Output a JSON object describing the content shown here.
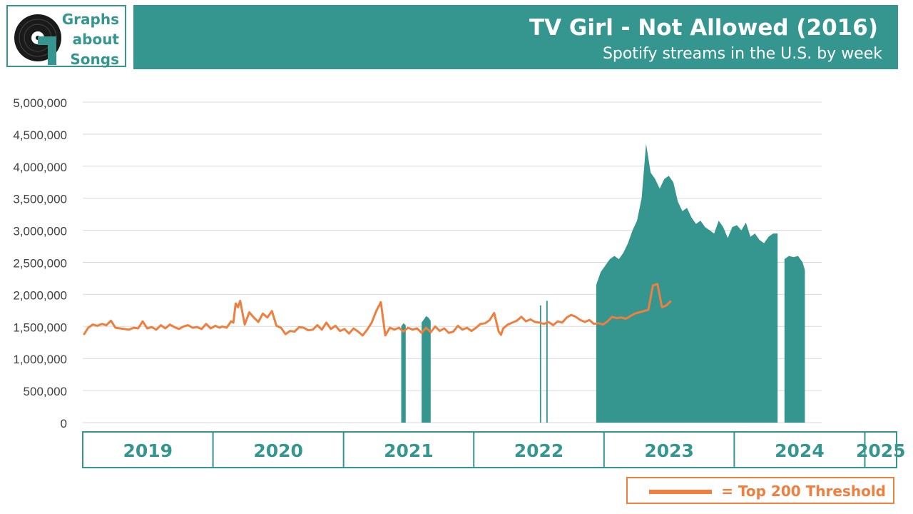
{
  "logo": {
    "lines": [
      "Graphs",
      "about",
      "Songs"
    ],
    "icon": "vinyl-record-icon"
  },
  "header": {
    "title": "TV Girl - Not Allowed (2016)",
    "subtitle": "Spotify streams in the U.S. by week"
  },
  "legend": {
    "label": "= Top 200 Threshold",
    "color": "#ee7f3e"
  },
  "colors": {
    "streams_fill": "#359690",
    "threshold_line": "#ee7f3e",
    "grid": "#d9d9d9",
    "axis_text": "#404040"
  },
  "chart_data": {
    "type": "area",
    "xlim": [
      "2019-01-01",
      "2025-03-31"
    ],
    "ylim": [
      0,
      5000000
    ],
    "grid": true,
    "legend_placement": "bottom-right",
    "y_ticks": [
      0,
      500000,
      1000000,
      1500000,
      2000000,
      2500000,
      3000000,
      3500000,
      4000000,
      4500000,
      5000000
    ],
    "y_tick_labels": [
      "0",
      "500,000",
      "1,000,000",
      "1,500,000",
      "2,000,000",
      "2,500,000",
      "3,000,000",
      "3,500,000",
      "4,000,000",
      "4,500,000",
      "5,000,000"
    ],
    "year_labels": [
      {
        "label": "2019",
        "start": "2019-01-01",
        "end": "2020-01-01"
      },
      {
        "label": "2020",
        "start": "2020-01-01",
        "end": "2021-01-01"
      },
      {
        "label": "2021",
        "start": "2021-01-01",
        "end": "2022-01-01"
      },
      {
        "label": "2022",
        "start": "2022-01-01",
        "end": "2023-01-01"
      },
      {
        "label": "2023",
        "start": "2023-01-01",
        "end": "2024-01-01"
      },
      {
        "label": "2024",
        "start": "2024-01-01",
        "end": "2025-01-01"
      },
      {
        "label": "2025",
        "start": "2025-01-01",
        "end": "2025-03-31"
      }
    ],
    "series": [
      {
        "role": "streams",
        "segments": [
          [
            [
              "2021-09-10",
              0
            ],
            [
              "2021-09-10",
              1500000
            ],
            [
              "2021-09-17",
              1550000
            ],
            [
              "2021-09-24",
              1520000
            ],
            [
              "2021-09-24",
              0
            ]
          ],
          [
            [
              "2021-11-12",
              0
            ],
            [
              "2021-11-12",
              1560000
            ],
            [
              "2021-11-19",
              1610000
            ],
            [
              "2021-11-26",
              1660000
            ],
            [
              "2021-12-03",
              1640000
            ],
            [
              "2021-12-10",
              1590000
            ],
            [
              "2021-12-10",
              0
            ]
          ],
          [
            [
              "2022-11-12",
              0
            ],
            [
              "2022-11-12",
              1830000
            ],
            [
              "2022-11-16",
              1830000
            ],
            [
              "2022-11-16",
              0
            ]
          ],
          [
            [
              "2022-12-02",
              0
            ],
            [
              "2022-12-02",
              1900000
            ],
            [
              "2022-12-06",
              1900000
            ],
            [
              "2022-12-06",
              0
            ]
          ],
          [
            [
              "2023-05-05",
              0
            ],
            [
              "2023-05-05",
              2150000
            ],
            [
              "2023-05-19",
              2350000
            ],
            [
              "2023-06-02",
              2450000
            ],
            [
              "2023-06-16",
              2550000
            ],
            [
              "2023-06-30",
              2600000
            ],
            [
              "2023-07-14",
              2550000
            ],
            [
              "2023-07-28",
              2650000
            ],
            [
              "2023-08-11",
              2800000
            ],
            [
              "2023-08-25",
              3000000
            ],
            [
              "2023-09-08",
              3150000
            ],
            [
              "2023-09-22",
              3500000
            ],
            [
              "2023-10-06",
              4350000
            ],
            [
              "2023-10-20",
              3900000
            ],
            [
              "2023-11-03",
              3800000
            ],
            [
              "2023-11-17",
              3650000
            ],
            [
              "2023-12-01",
              3800000
            ],
            [
              "2023-12-15",
              3850000
            ],
            [
              "2023-12-29",
              3750000
            ],
            [
              "2024-01-12",
              3450000
            ],
            [
              "2024-01-26",
              3300000
            ],
            [
              "2024-02-09",
              3350000
            ],
            [
              "2024-02-23",
              3200000
            ],
            [
              "2024-03-08",
              3100000
            ],
            [
              "2024-03-22",
              3150000
            ],
            [
              "2024-04-05",
              3050000
            ],
            [
              "2024-04-19",
              3000000
            ],
            [
              "2024-05-03",
              2950000
            ],
            [
              "2024-05-17",
              3150000
            ],
            [
              "2024-05-31",
              3050000
            ],
            [
              "2024-06-14",
              2880000
            ],
            [
              "2024-06-28",
              3050000
            ],
            [
              "2024-07-12",
              3080000
            ],
            [
              "2024-07-26",
              3000000
            ],
            [
              "2024-08-09",
              3120000
            ],
            [
              "2024-08-23",
              2900000
            ],
            [
              "2024-09-06",
              2950000
            ],
            [
              "2024-09-20",
              2850000
            ],
            [
              "2024-10-04",
              2800000
            ],
            [
              "2024-10-18",
              2900000
            ],
            [
              "2024-11-01",
              2950000
            ],
            [
              "2024-11-15",
              2950000
            ],
            [
              "2024-11-15",
              0
            ]
          ],
          [
            [
              "2024-12-06",
              0
            ],
            [
              "2024-12-06",
              2550000
            ],
            [
              "2024-12-20",
              2600000
            ],
            [
              "2025-01-03",
              2580000
            ],
            [
              "2025-01-17",
              2600000
            ],
            [
              "2025-01-31",
              2500000
            ],
            [
              "2025-02-07",
              2380000
            ],
            [
              "2025-02-07",
              0
            ]
          ]
        ]
      },
      {
        "role": "threshold",
        "points": [
          [
            "2019-01-04",
            1370000
          ],
          [
            "2019-01-18",
            1480000
          ],
          [
            "2019-02-01",
            1530000
          ],
          [
            "2019-02-15",
            1510000
          ],
          [
            "2019-03-01",
            1540000
          ],
          [
            "2019-03-15",
            1520000
          ],
          [
            "2019-03-29",
            1590000
          ],
          [
            "2019-04-12",
            1480000
          ],
          [
            "2019-04-26",
            1470000
          ],
          [
            "2019-05-10",
            1460000
          ],
          [
            "2019-05-24",
            1450000
          ],
          [
            "2019-06-07",
            1480000
          ],
          [
            "2019-06-21",
            1470000
          ],
          [
            "2019-07-05",
            1580000
          ],
          [
            "2019-07-19",
            1470000
          ],
          [
            "2019-08-02",
            1490000
          ],
          [
            "2019-08-16",
            1450000
          ],
          [
            "2019-08-30",
            1520000
          ],
          [
            "2019-09-13",
            1470000
          ],
          [
            "2019-09-27",
            1530000
          ],
          [
            "2019-10-11",
            1490000
          ],
          [
            "2019-10-25",
            1460000
          ],
          [
            "2019-11-08",
            1500000
          ],
          [
            "2019-11-22",
            1520000
          ],
          [
            "2019-12-06",
            1480000
          ],
          [
            "2019-12-20",
            1490000
          ],
          [
            "2020-01-03",
            1460000
          ],
          [
            "2020-01-17",
            1540000
          ],
          [
            "2020-01-31",
            1470000
          ],
          [
            "2020-02-14",
            1510000
          ],
          [
            "2020-02-28",
            1480000
          ],
          [
            "2020-03-06",
            1500000
          ],
          [
            "2020-03-20",
            1480000
          ],
          [
            "2020-04-03",
            1580000
          ],
          [
            "2020-04-10",
            1560000
          ],
          [
            "2020-04-17",
            1860000
          ],
          [
            "2020-04-24",
            1800000
          ],
          [
            "2020-05-01",
            1900000
          ],
          [
            "2020-05-15",
            1530000
          ],
          [
            "2020-05-29",
            1720000
          ],
          [
            "2020-06-12",
            1640000
          ],
          [
            "2020-06-26",
            1570000
          ],
          [
            "2020-07-10",
            1700000
          ],
          [
            "2020-07-24",
            1640000
          ],
          [
            "2020-08-07",
            1740000
          ],
          [
            "2020-08-21",
            1510000
          ],
          [
            "2020-09-04",
            1480000
          ],
          [
            "2020-09-18",
            1380000
          ],
          [
            "2020-10-02",
            1430000
          ],
          [
            "2020-10-16",
            1420000
          ],
          [
            "2020-10-30",
            1490000
          ],
          [
            "2020-11-13",
            1480000
          ],
          [
            "2020-11-27",
            1440000
          ],
          [
            "2020-12-11",
            1450000
          ],
          [
            "2020-12-25",
            1520000
          ],
          [
            "2021-01-08",
            1450000
          ],
          [
            "2021-01-22",
            1560000
          ],
          [
            "2021-02-05",
            1460000
          ],
          [
            "2021-02-19",
            1510000
          ],
          [
            "2021-03-05",
            1430000
          ],
          [
            "2021-03-19",
            1460000
          ],
          [
            "2021-04-02",
            1390000
          ],
          [
            "2021-04-16",
            1470000
          ],
          [
            "2021-04-30",
            1420000
          ],
          [
            "2021-05-14",
            1360000
          ],
          [
            "2021-05-28",
            1450000
          ],
          [
            "2021-06-11",
            1560000
          ],
          [
            "2021-06-25",
            1740000
          ],
          [
            "2021-07-09",
            1880000
          ],
          [
            "2021-07-23",
            1360000
          ],
          [
            "2021-08-06",
            1480000
          ],
          [
            "2021-08-20",
            1450000
          ],
          [
            "2021-09-03",
            1480000
          ],
          [
            "2021-09-17",
            1420000
          ],
          [
            "2021-10-01",
            1480000
          ],
          [
            "2021-10-15",
            1450000
          ],
          [
            "2021-10-29",
            1470000
          ],
          [
            "2021-11-12",
            1400000
          ],
          [
            "2021-11-26",
            1480000
          ],
          [
            "2021-12-10",
            1410000
          ],
          [
            "2021-12-24",
            1500000
          ],
          [
            "2022-01-07",
            1430000
          ],
          [
            "2022-01-21",
            1470000
          ],
          [
            "2022-02-04",
            1400000
          ],
          [
            "2022-02-18",
            1420000
          ],
          [
            "2022-03-04",
            1510000
          ],
          [
            "2022-03-18",
            1450000
          ],
          [
            "2022-04-01",
            1480000
          ],
          [
            "2022-04-15",
            1430000
          ],
          [
            "2022-04-29",
            1480000
          ],
          [
            "2022-05-13",
            1540000
          ],
          [
            "2022-05-27",
            1550000
          ],
          [
            "2022-06-10",
            1600000
          ],
          [
            "2022-06-24",
            1710000
          ],
          [
            "2022-07-08",
            1420000
          ],
          [
            "2022-07-15",
            1370000
          ],
          [
            "2022-07-22",
            1470000
          ],
          [
            "2022-08-05",
            1530000
          ],
          [
            "2022-08-19",
            1560000
          ],
          [
            "2022-09-02",
            1590000
          ],
          [
            "2022-09-16",
            1650000
          ],
          [
            "2022-09-30",
            1580000
          ],
          [
            "2022-10-14",
            1610000
          ],
          [
            "2022-10-28",
            1570000
          ],
          [
            "2022-11-11",
            1560000
          ],
          [
            "2022-11-25",
            1540000
          ],
          [
            "2022-12-09",
            1570000
          ],
          [
            "2022-12-23",
            1520000
          ],
          [
            "2023-01-06",
            1580000
          ],
          [
            "2023-01-20",
            1560000
          ],
          [
            "2023-02-03",
            1640000
          ],
          [
            "2023-02-17",
            1680000
          ],
          [
            "2023-03-03",
            1650000
          ],
          [
            "2023-03-17",
            1600000
          ],
          [
            "2023-03-31",
            1570000
          ],
          [
            "2023-04-14",
            1600000
          ],
          [
            "2023-04-28",
            1540000
          ],
          [
            "2023-05-12",
            1550000
          ],
          [
            "2023-05-26",
            1530000
          ],
          [
            "2023-06-09",
            1580000
          ],
          [
            "2023-06-23",
            1650000
          ],
          [
            "2023-07-07",
            1630000
          ],
          [
            "2023-07-21",
            1640000
          ],
          [
            "2023-08-04",
            1620000
          ],
          [
            "2023-08-18",
            1660000
          ],
          [
            "2023-09-01",
            1700000
          ],
          [
            "2023-09-15",
            1720000
          ],
          [
            "2023-09-29",
            1740000
          ],
          [
            "2023-10-13",
            1760000
          ],
          [
            "2023-10-27",
            2140000
          ],
          [
            "2023-11-10",
            2160000
          ],
          [
            "2023-11-24",
            1800000
          ],
          [
            "2023-12-08",
            1830000
          ],
          [
            "2023-12-22",
            1900000
          ]
        ]
      }
    ]
  }
}
